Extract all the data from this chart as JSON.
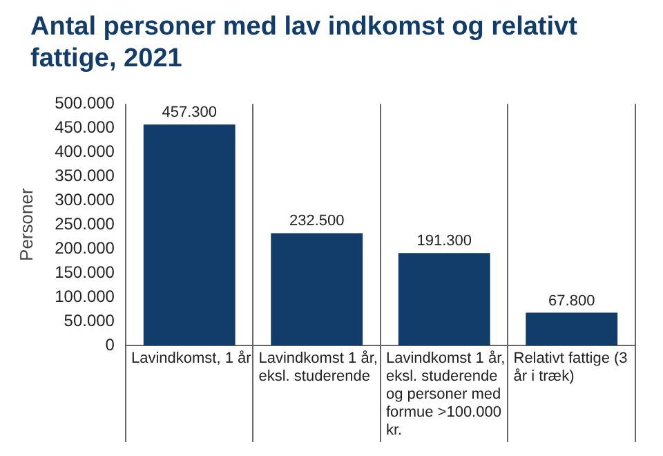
{
  "chart_data": {
    "type": "bar",
    "title": "Antal personer med lav indkomst og relativt fattige, 2021",
    "ylabel": "Personer",
    "categories": [
      "Lavindkomst, 1 år",
      "Lavindkomst 1 år, eksl. studerende",
      "Lavindkomst 1 år, eksl. studerende og personer med formue >100.000 kr.",
      "Relativt fattige (3 år i træk)"
    ],
    "values": [
      457300,
      232500,
      191300,
      67800
    ],
    "value_labels": [
      "457.300",
      "232.500",
      "191.300",
      "67.800"
    ],
    "color": "#123d6a",
    "ylim": [
      0,
      500000
    ],
    "yticks": [
      {
        "value": 0,
        "label": "0"
      },
      {
        "value": 50000,
        "label": "50.000"
      },
      {
        "value": 100000,
        "label": "100.000"
      },
      {
        "value": 150000,
        "label": "150.000"
      },
      {
        "value": 200000,
        "label": "200.000"
      },
      {
        "value": 250000,
        "label": "250.000"
      },
      {
        "value": 300000,
        "label": "300.000"
      },
      {
        "value": 350000,
        "label": "350.000"
      },
      {
        "value": 400000,
        "label": "400.000"
      },
      {
        "value": 450000,
        "label": "450.000"
      },
      {
        "value": 500000,
        "label": "500.000"
      }
    ],
    "grid": "x"
  }
}
